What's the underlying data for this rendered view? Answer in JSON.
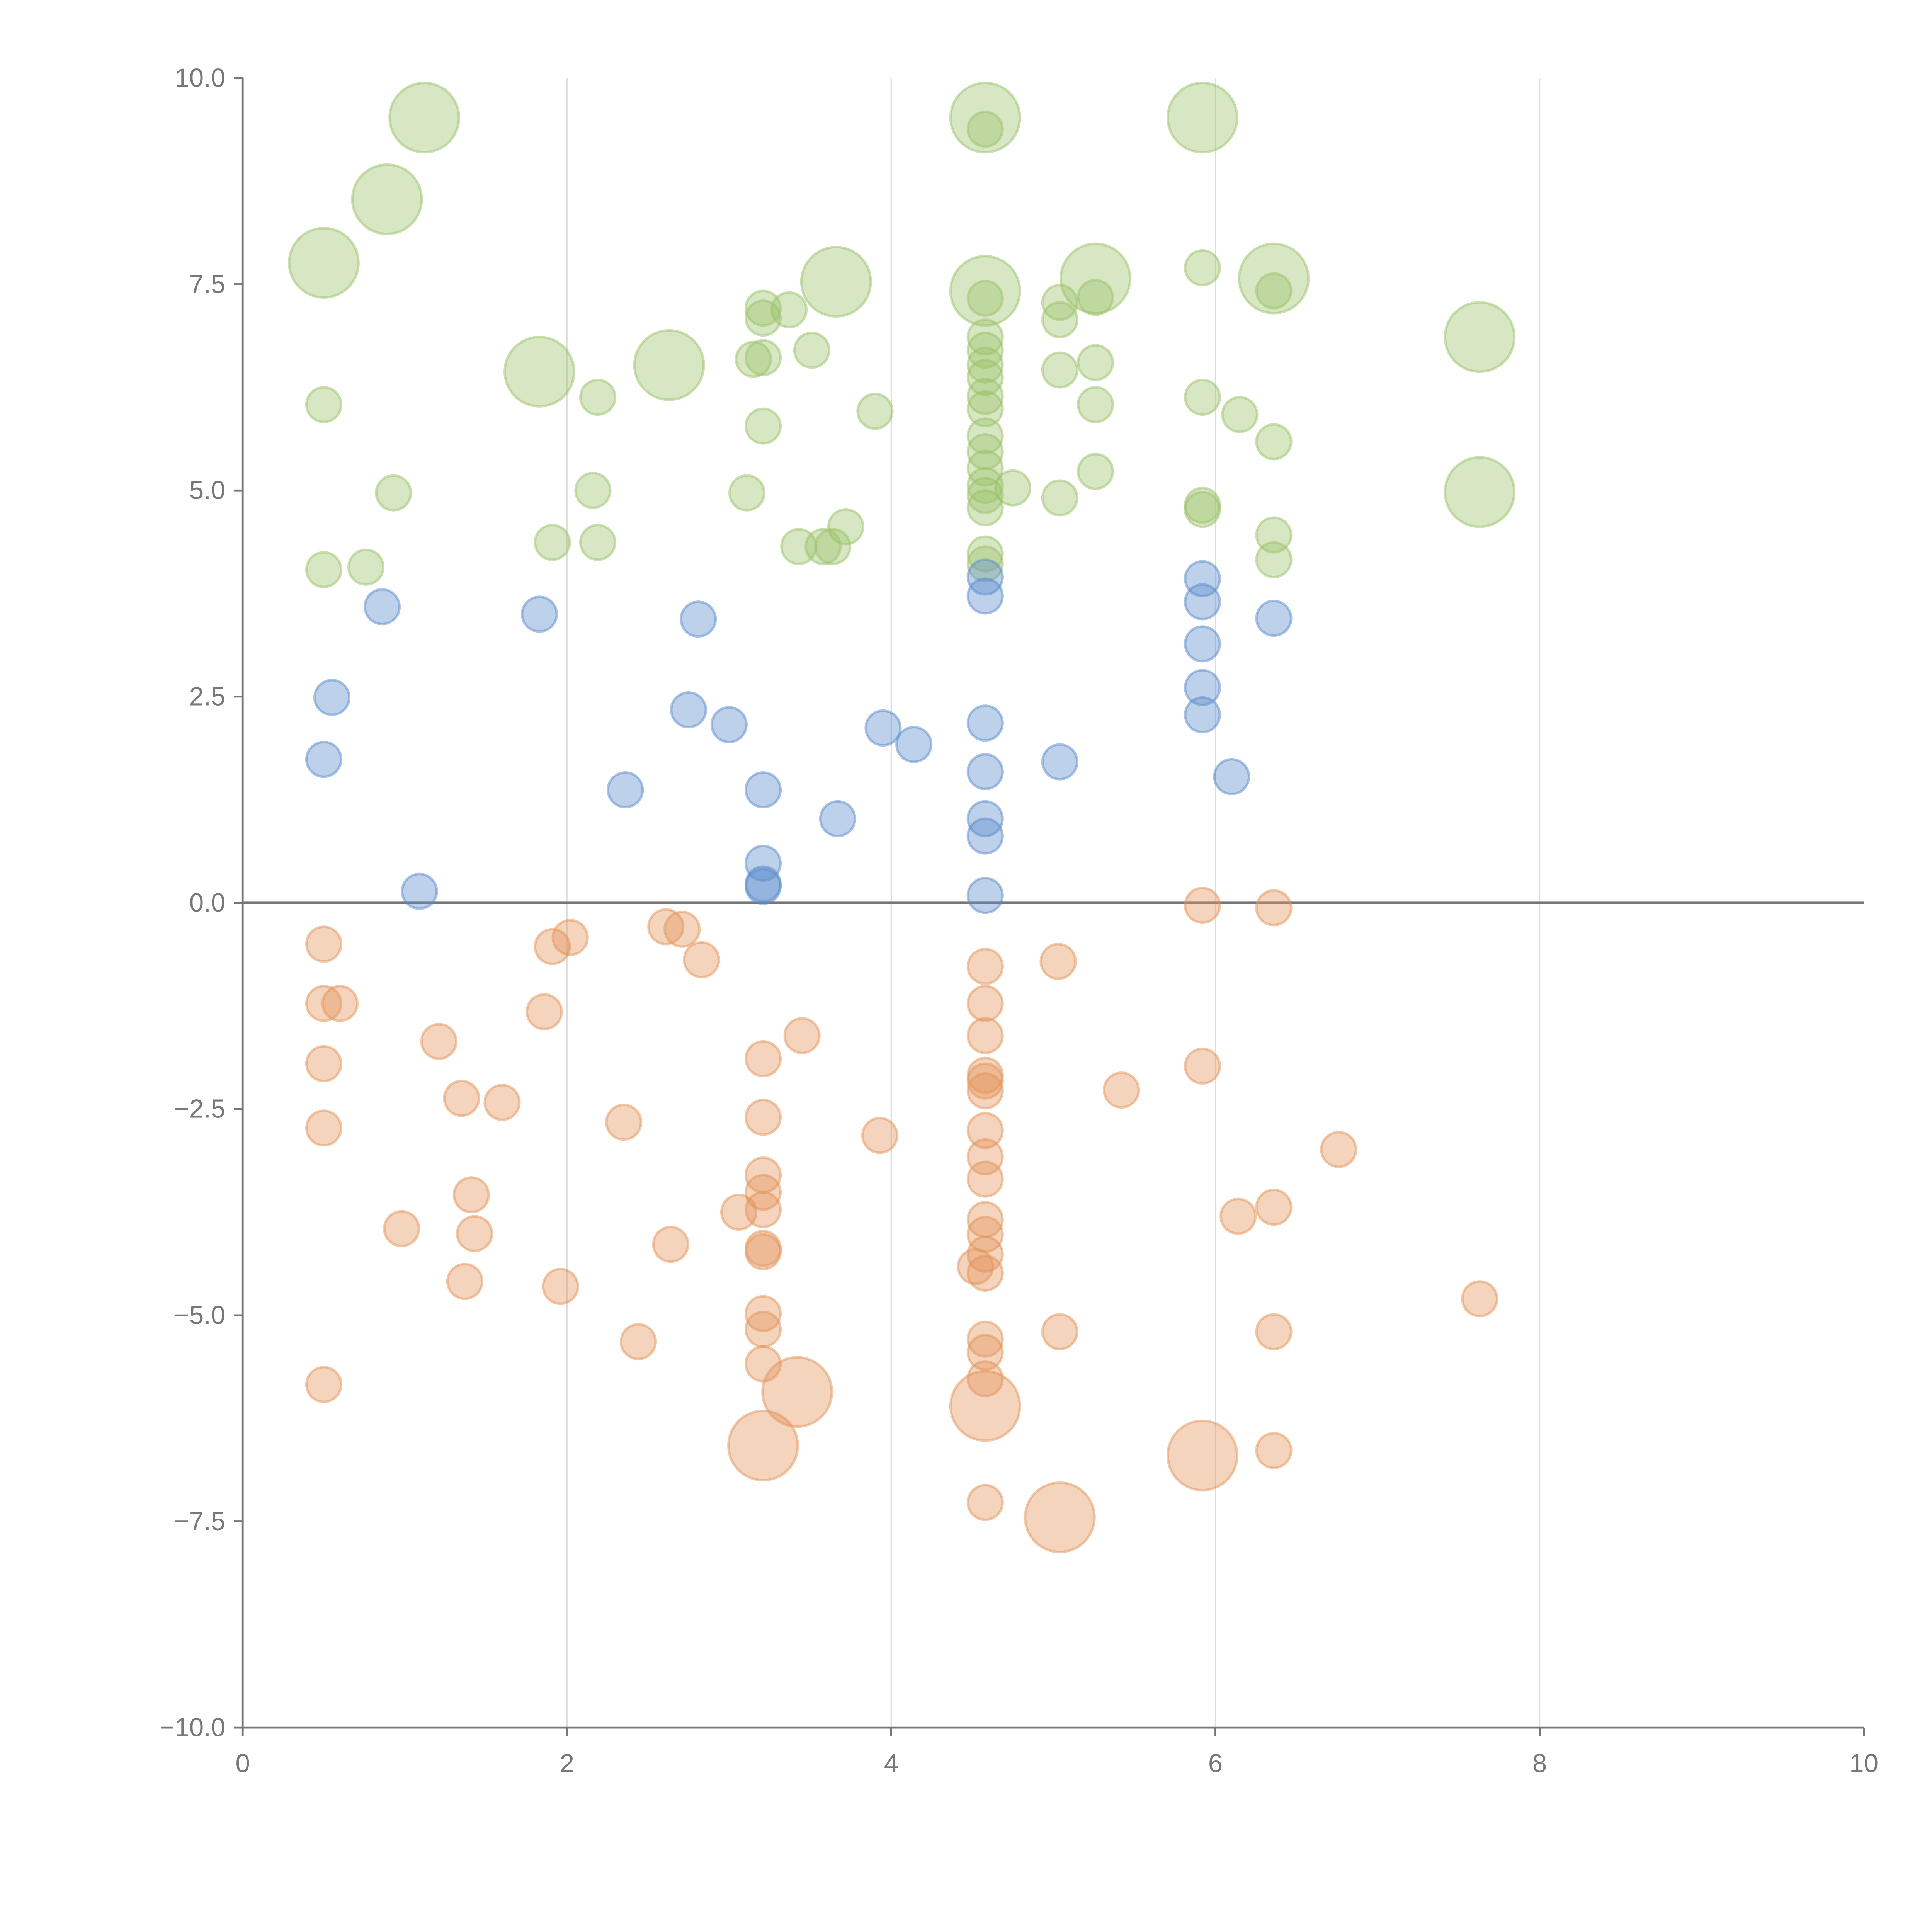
{
  "chart_data": {
    "type": "scatter",
    "title": "",
    "xlabel": "",
    "ylabel": "",
    "xlim": [
      0,
      10
    ],
    "ylim": [
      -10,
      10
    ],
    "grid": "vertical",
    "x_ticks": [
      "0",
      "2",
      "4",
      "6",
      "8",
      "10"
    ],
    "y_ticks": [
      "−10.0",
      "−7.5",
      "−5.0",
      "−2.5",
      "0.0",
      "2.5",
      "5.0",
      "7.5",
      "10.0"
    ],
    "x_tick_values": [
      0,
      2,
      4,
      6,
      8,
      10
    ],
    "y_tick_values": [
      -10,
      -7.5,
      -5,
      -2.5,
      0,
      2.5,
      5,
      7.5,
      10
    ],
    "reference_line_y": 0,
    "point_format": [
      "x",
      "y",
      "size"
    ],
    "series": [
      {
        "name": "green",
        "color": "#9cc26a",
        "points": [
          [
            1.12,
            9.52,
            4
          ],
          [
            0.89,
            8.53,
            4
          ],
          [
            0.5,
            7.76,
            4
          ],
          [
            1.83,
            6.44,
            4
          ],
          [
            2.63,
            6.52,
            4
          ],
          [
            3.66,
            7.53,
            4
          ],
          [
            4.58,
            9.52,
            4
          ],
          [
            4.58,
            7.42,
            4
          ],
          [
            5.26,
            7.57,
            4
          ],
          [
            5.92,
            9.52,
            4
          ],
          [
            6.36,
            7.57,
            4
          ],
          [
            7.63,
            6.86,
            4
          ],
          [
            7.63,
            4.98,
            4
          ],
          [
            0.5,
            6.04,
            1
          ],
          [
            0.93,
            4.97,
            1
          ],
          [
            0.5,
            4.04,
            1
          ],
          [
            0.76,
            4.07,
            1
          ],
          [
            1.91,
            4.37,
            1
          ],
          [
            2.19,
            4.37,
            1
          ],
          [
            2.16,
            5.0,
            1
          ],
          [
            2.19,
            6.13,
            1
          ],
          [
            3.11,
            4.97,
            1
          ],
          [
            3.21,
            5.78,
            1
          ],
          [
            3.15,
            6.59,
            1
          ],
          [
            3.21,
            6.61,
            1
          ],
          [
            3.21,
            7.21,
            1
          ],
          [
            3.21,
            7.09,
            1
          ],
          [
            3.37,
            7.19,
            1
          ],
          [
            3.51,
            6.7,
            1
          ],
          [
            3.43,
            4.32,
            1
          ],
          [
            3.58,
            4.32,
            1
          ],
          [
            3.64,
            4.32,
            1
          ],
          [
            3.72,
            4.56,
            1
          ],
          [
            3.9,
            5.96,
            1
          ],
          [
            4.58,
            7.33,
            1
          ],
          [
            4.58,
            6.86,
            1
          ],
          [
            4.58,
            6.7,
            1
          ],
          [
            4.58,
            6.52,
            1
          ],
          [
            4.58,
            6.37,
            1
          ],
          [
            4.58,
            6.14,
            1
          ],
          [
            4.58,
            5.99,
            1
          ],
          [
            4.58,
            5.66,
            1
          ],
          [
            4.58,
            5.47,
            1
          ],
          [
            4.58,
            5.27,
            1
          ],
          [
            4.58,
            5.06,
            1
          ],
          [
            4.58,
            4.94,
            1
          ],
          [
            4.58,
            4.79,
            1
          ],
          [
            4.58,
            4.23,
            1
          ],
          [
            4.58,
            4.11,
            1
          ],
          [
            4.58,
            9.38,
            1
          ],
          [
            4.75,
            5.03,
            1
          ],
          [
            5.04,
            7.28,
            1
          ],
          [
            5.04,
            7.07,
            1
          ],
          [
            5.04,
            6.46,
            1
          ],
          [
            5.04,
            4.91,
            1
          ],
          [
            5.26,
            7.34,
            1
          ],
          [
            5.26,
            6.55,
            1
          ],
          [
            5.26,
            6.04,
            1
          ],
          [
            5.26,
            5.23,
            1
          ],
          [
            5.92,
            7.7,
            1
          ],
          [
            5.92,
            6.13,
            1
          ],
          [
            5.92,
            4.82,
            1
          ],
          [
            5.92,
            4.77,
            1
          ],
          [
            6.15,
            5.92,
            1
          ],
          [
            6.36,
            7.42,
            1
          ],
          [
            6.36,
            5.59,
            1
          ],
          [
            6.36,
            4.46,
            1
          ],
          [
            6.36,
            4.16,
            1
          ]
        ]
      },
      {
        "name": "blue",
        "color": "#5b8ccc",
        "points": [
          [
            0.86,
            3.59,
            1
          ],
          [
            1.83,
            3.5,
            1
          ],
          [
            2.81,
            3.44,
            1
          ],
          [
            0.55,
            2.49,
            1
          ],
          [
            0.5,
            1.74,
            1
          ],
          [
            2.36,
            1.37,
            1
          ],
          [
            2.75,
            2.34,
            1
          ],
          [
            3.0,
            2.16,
            1
          ],
          [
            3.21,
            1.37,
            1
          ],
          [
            3.67,
            1.02,
            1
          ],
          [
            3.21,
            0.48,
            1
          ],
          [
            3.21,
            0.23,
            1
          ],
          [
            3.21,
            0.2,
            1
          ],
          [
            1.09,
            0.14,
            1
          ],
          [
            3.95,
            2.12,
            1
          ],
          [
            4.14,
            1.92,
            1
          ],
          [
            4.58,
            3.95,
            1
          ],
          [
            4.58,
            3.72,
            1
          ],
          [
            4.58,
            2.18,
            1
          ],
          [
            4.58,
            1.59,
            1
          ],
          [
            4.58,
            1.02,
            1
          ],
          [
            4.58,
            0.81,
            1
          ],
          [
            4.58,
            0.09,
            1
          ],
          [
            5.04,
            1.71,
            1
          ],
          [
            5.92,
            3.93,
            1
          ],
          [
            5.92,
            3.65,
            1
          ],
          [
            5.92,
            3.14,
            1
          ],
          [
            5.92,
            2.61,
            1
          ],
          [
            5.92,
            2.28,
            1
          ],
          [
            6.1,
            1.53,
            1
          ],
          [
            6.36,
            3.45,
            1
          ]
        ]
      },
      {
        "name": "orange",
        "color": "#e3935a",
        "points": [
          [
            0.5,
            -0.5,
            1
          ],
          [
            0.5,
            -1.22,
            1
          ],
          [
            0.6,
            -1.22,
            1
          ],
          [
            0.5,
            -1.95,
            1
          ],
          [
            0.5,
            -2.73,
            1
          ],
          [
            0.5,
            -5.84,
            1
          ],
          [
            1.21,
            -1.68,
            1
          ],
          [
            1.35,
            -2.37,
            1
          ],
          [
            1.6,
            -2.42,
            1
          ],
          [
            1.41,
            -3.54,
            1
          ],
          [
            1.43,
            -4.01,
            1
          ],
          [
            0.98,
            -3.95,
            1
          ],
          [
            1.37,
            -4.59,
            1
          ],
          [
            1.96,
            -4.65,
            1
          ],
          [
            1.86,
            -1.32,
            1
          ],
          [
            1.91,
            -0.53,
            1
          ],
          [
            2.02,
            -0.42,
            1
          ],
          [
            2.35,
            -2.66,
            1
          ],
          [
            2.44,
            -5.32,
            1
          ],
          [
            2.64,
            -4.14,
            1
          ],
          [
            2.61,
            -0.29,
            1
          ],
          [
            2.71,
            -0.32,
            1
          ],
          [
            2.83,
            -0.69,
            1
          ],
          [
            3.06,
            -3.75,
            1
          ],
          [
            3.21,
            -1.89,
            1
          ],
          [
            3.21,
            -2.6,
            1
          ],
          [
            3.21,
            -3.3,
            1
          ],
          [
            3.21,
            -3.51,
            1
          ],
          [
            3.21,
            -3.72,
            1
          ],
          [
            3.21,
            -4.19,
            1
          ],
          [
            3.21,
            -4.23,
            1
          ],
          [
            3.21,
            -4.98,
            1
          ],
          [
            3.21,
            -5.17,
            1
          ],
          [
            3.21,
            -5.59,
            1
          ],
          [
            3.45,
            -1.61,
            1
          ],
          [
            3.93,
            -2.82,
            1
          ],
          [
            4.58,
            -0.77,
            1
          ],
          [
            4.58,
            -1.22,
            1
          ],
          [
            4.58,
            -1.61,
            1
          ],
          [
            4.58,
            -2.09,
            1
          ],
          [
            4.58,
            -2.16,
            1
          ],
          [
            4.58,
            -2.28,
            1
          ],
          [
            4.58,
            -2.76,
            1
          ],
          [
            4.58,
            -3.08,
            1
          ],
          [
            4.58,
            -3.35,
            1
          ],
          [
            4.58,
            -3.84,
            1
          ],
          [
            4.58,
            -4.02,
            1
          ],
          [
            4.58,
            -4.26,
            1
          ],
          [
            4.58,
            -4.49,
            1
          ],
          [
            4.52,
            -4.41,
            1
          ],
          [
            4.58,
            -5.29,
            1
          ],
          [
            4.58,
            -5.45,
            1
          ],
          [
            4.58,
            -5.77,
            1
          ],
          [
            4.58,
            -7.27,
            1
          ],
          [
            5.03,
            -0.71,
            1
          ],
          [
            5.04,
            -5.2,
            1
          ],
          [
            5.42,
            -2.27,
            1
          ],
          [
            5.92,
            -0.03,
            1
          ],
          [
            5.92,
            -1.98,
            1
          ],
          [
            6.14,
            -3.8,
            1
          ],
          [
            6.36,
            -0.06,
            1
          ],
          [
            6.36,
            -3.69,
            1
          ],
          [
            6.36,
            -5.2,
            1
          ],
          [
            6.36,
            -6.64,
            1
          ],
          [
            6.76,
            -2.99,
            1
          ],
          [
            7.63,
            -4.8,
            1
          ],
          [
            3.21,
            -6.58,
            4
          ],
          [
            3.42,
            -5.93,
            4
          ],
          [
            4.58,
            -6.1,
            4
          ],
          [
            5.04,
            -7.45,
            4
          ],
          [
            5.92,
            -6.7,
            4
          ]
        ]
      }
    ]
  }
}
